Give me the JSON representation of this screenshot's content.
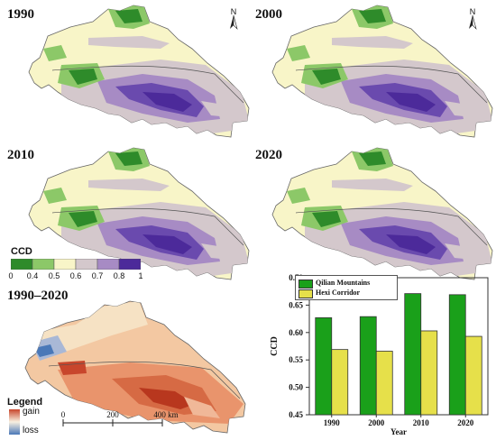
{
  "maps": [
    {
      "year": "1990"
    },
    {
      "year": "2000"
    },
    {
      "year": "2010"
    },
    {
      "year": "2020"
    }
  ],
  "north_arrow_label": "N",
  "ccd_legend": {
    "title": "CCD",
    "ticks": [
      "0",
      "0.4",
      "0.5",
      "0.6",
      "0.7",
      "0.8",
      "1"
    ],
    "colors": [
      "#2e8b2a",
      "#8cc868",
      "#f8f5c8",
      "#d4c8cc",
      "#a78bc4",
      "#4c2a9a"
    ]
  },
  "change_map": {
    "title": "1990–2020",
    "legend_title": "Legend",
    "gain_label": "gain",
    "loss_label": "loss",
    "gain_color": "#c8462c",
    "loss_color": "#4a78b8"
  },
  "scale_bar": {
    "labels": [
      "0",
      "200",
      "400 km"
    ]
  },
  "chart_data": {
    "type": "bar",
    "categories": [
      "1990",
      "2000",
      "2010",
      "2020"
    ],
    "series": [
      {
        "name": "Qilian Mountains",
        "color": "#1aa01a",
        "values": [
          0.627,
          0.629,
          0.671,
          0.669
        ]
      },
      {
        "name": "Hexi Corridor",
        "color": "#e6e04a",
        "values": [
          0.569,
          0.566,
          0.603,
          0.593
        ]
      }
    ],
    "xlabel": "Year",
    "ylabel": "CCD",
    "ylim": [
      0.45,
      0.7
    ],
    "yticks": [
      "0.45",
      "0.50",
      "0.55",
      "0.60",
      "0.65",
      "0.70"
    ]
  }
}
